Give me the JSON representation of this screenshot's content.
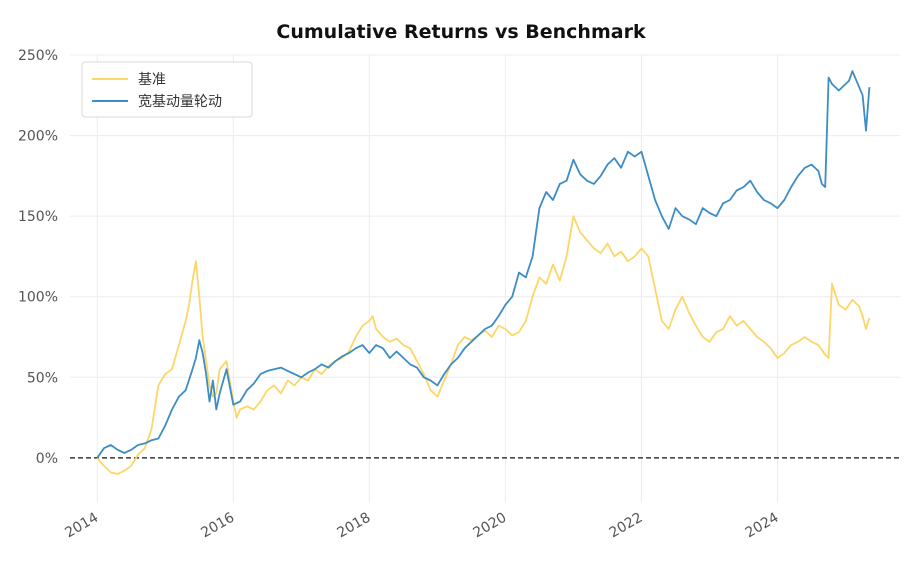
{
  "chart_data": {
    "type": "line",
    "title": "Cumulative Returns vs Benchmark",
    "xlabel": "",
    "ylabel": "",
    "x_ticks": [
      "2014",
      "2016",
      "2018",
      "2020",
      "2022",
      "2024"
    ],
    "y_ticks": [
      "0%",
      "50%",
      "100%",
      "150%",
      "200%",
      "250%"
    ],
    "xlim": [
      2013.6,
      2025.8
    ],
    "ylim": [
      -28,
      250
    ],
    "grid": true,
    "legend_position": "top-left",
    "zero_line": {
      "value": 0,
      "style": "dashed",
      "color": "#111111"
    },
    "series": [
      {
        "name": "基准",
        "color": "#FCD667",
        "x": [
          2014.0,
          2014.1,
          2014.2,
          2014.3,
          2014.4,
          2014.5,
          2014.6,
          2014.7,
          2014.8,
          2014.9,
          2015.0,
          2015.1,
          2015.2,
          2015.3,
          2015.35,
          2015.4,
          2015.45,
          2015.5,
          2015.55,
          2015.6,
          2015.65,
          2015.7,
          2015.75,
          2015.8,
          2015.9,
          2016.0,
          2016.05,
          2016.1,
          2016.2,
          2016.3,
          2016.4,
          2016.5,
          2016.6,
          2016.7,
          2016.8,
          2016.9,
          2017.0,
          2017.1,
          2017.2,
          2017.3,
          2017.4,
          2017.5,
          2017.6,
          2017.7,
          2017.8,
          2017.9,
          2018.0,
          2018.05,
          2018.1,
          2018.2,
          2018.3,
          2018.4,
          2018.5,
          2018.6,
          2018.7,
          2018.8,
          2018.9,
          2019.0,
          2019.1,
          2019.2,
          2019.3,
          2019.4,
          2019.5,
          2019.6,
          2019.7,
          2019.8,
          2019.9,
          2020.0,
          2020.1,
          2020.2,
          2020.3,
          2020.4,
          2020.5,
          2020.6,
          2020.7,
          2020.8,
          2020.9,
          2021.0,
          2021.1,
          2021.2,
          2021.3,
          2021.4,
          2021.5,
          2021.6,
          2021.7,
          2021.8,
          2021.9,
          2022.0,
          2022.1,
          2022.2,
          2022.3,
          2022.4,
          2022.5,
          2022.6,
          2022.7,
          2022.8,
          2022.9,
          2023.0,
          2023.1,
          2023.2,
          2023.3,
          2023.4,
          2023.5,
          2023.6,
          2023.7,
          2023.8,
          2023.9,
          2024.0,
          2024.1,
          2024.2,
          2024.3,
          2024.4,
          2024.5,
          2024.6,
          2024.7,
          2024.75,
          2024.8,
          2024.9,
          2025.0,
          2025.1,
          2025.2,
          2025.25,
          2025.3,
          2025.35
        ],
        "values": [
          0,
          -5,
          -9,
          -10,
          -8,
          -5,
          2,
          6,
          18,
          45,
          52,
          55,
          70,
          85,
          95,
          110,
          122,
          100,
          75,
          60,
          45,
          38,
          40,
          55,
          60,
          35,
          25,
          30,
          32,
          30,
          35,
          42,
          45,
          40,
          48,
          45,
          50,
          48,
          55,
          52,
          57,
          60,
          62,
          66,
          75,
          82,
          85,
          88,
          80,
          75,
          72,
          74,
          70,
          68,
          60,
          52,
          42,
          38,
          48,
          58,
          70,
          75,
          73,
          76,
          79,
          75,
          82,
          80,
          76,
          78,
          85,
          100,
          112,
          108,
          120,
          110,
          125,
          150,
          140,
          135,
          130,
          127,
          133,
          125,
          128,
          122,
          125,
          130,
          125,
          105,
          85,
          80,
          92,
          100,
          90,
          82,
          75,
          72,
          78,
          80,
          88,
          82,
          85,
          80,
          75,
          72,
          68,
          62,
          65,
          70,
          72,
          75,
          72,
          70,
          64,
          62,
          108,
          95,
          92,
          98,
          94,
          88,
          80,
          87
        ]
      },
      {
        "name": "宽基动量轮动",
        "color": "#3C8DC5",
        "x": [
          2014.0,
          2014.1,
          2014.2,
          2014.3,
          2014.4,
          2014.5,
          2014.6,
          2014.7,
          2014.8,
          2014.9,
          2015.0,
          2015.1,
          2015.2,
          2015.3,
          2015.4,
          2015.45,
          2015.5,
          2015.55,
          2015.6,
          2015.65,
          2015.7,
          2015.75,
          2015.8,
          2015.9,
          2016.0,
          2016.1,
          2016.2,
          2016.3,
          2016.4,
          2016.5,
          2016.6,
          2016.7,
          2016.8,
          2016.9,
          2017.0,
          2017.1,
          2017.2,
          2017.3,
          2017.4,
          2017.5,
          2017.6,
          2017.7,
          2017.8,
          2017.9,
          2018.0,
          2018.1,
          2018.2,
          2018.3,
          2018.4,
          2018.5,
          2018.6,
          2018.7,
          2018.8,
          2018.9,
          2019.0,
          2019.1,
          2019.2,
          2019.3,
          2019.4,
          2019.5,
          2019.6,
          2019.7,
          2019.8,
          2019.9,
          2020.0,
          2020.1,
          2020.2,
          2020.3,
          2020.4,
          2020.5,
          2020.6,
          2020.7,
          2020.8,
          2020.9,
          2021.0,
          2021.1,
          2021.2,
          2021.3,
          2021.4,
          2021.5,
          2021.6,
          2021.7,
          2021.8,
          2021.9,
          2022.0,
          2022.1,
          2022.2,
          2022.3,
          2022.4,
          2022.5,
          2022.6,
          2022.7,
          2022.8,
          2022.9,
          2023.0,
          2023.1,
          2023.2,
          2023.3,
          2023.4,
          2023.5,
          2023.6,
          2023.7,
          2023.8,
          2023.9,
          2024.0,
          2024.1,
          2024.2,
          2024.3,
          2024.4,
          2024.5,
          2024.6,
          2024.65,
          2024.7,
          2024.75,
          2024.8,
          2024.9,
          2025.0,
          2025.05,
          2025.1,
          2025.15,
          2025.2,
          2025.25,
          2025.3,
          2025.35
        ],
        "values": [
          0,
          6,
          8,
          5,
          3,
          5,
          8,
          9,
          11,
          12,
          20,
          30,
          38,
          42,
          55,
          62,
          73,
          65,
          52,
          35,
          48,
          30,
          40,
          55,
          33,
          35,
          42,
          46,
          52,
          54,
          55,
          56,
          54,
          52,
          50,
          53,
          55,
          58,
          56,
          60,
          63,
          65,
          68,
          70,
          65,
          70,
          68,
          62,
          66,
          62,
          58,
          56,
          50,
          48,
          45,
          52,
          58,
          62,
          68,
          72,
          76,
          80,
          82,
          88,
          95,
          100,
          115,
          112,
          125,
          155,
          165,
          160,
          170,
          172,
          185,
          176,
          172,
          170,
          175,
          182,
          186,
          180,
          190,
          187,
          190,
          175,
          160,
          150,
          142,
          155,
          150,
          148,
          145,
          155,
          152,
          150,
          158,
          160,
          166,
          168,
          172,
          165,
          160,
          158,
          155,
          160,
          168,
          175,
          180,
          182,
          178,
          170,
          168,
          236,
          232,
          228,
          232,
          234,
          240,
          235,
          230,
          225,
          203,
          230
        ]
      }
    ]
  }
}
